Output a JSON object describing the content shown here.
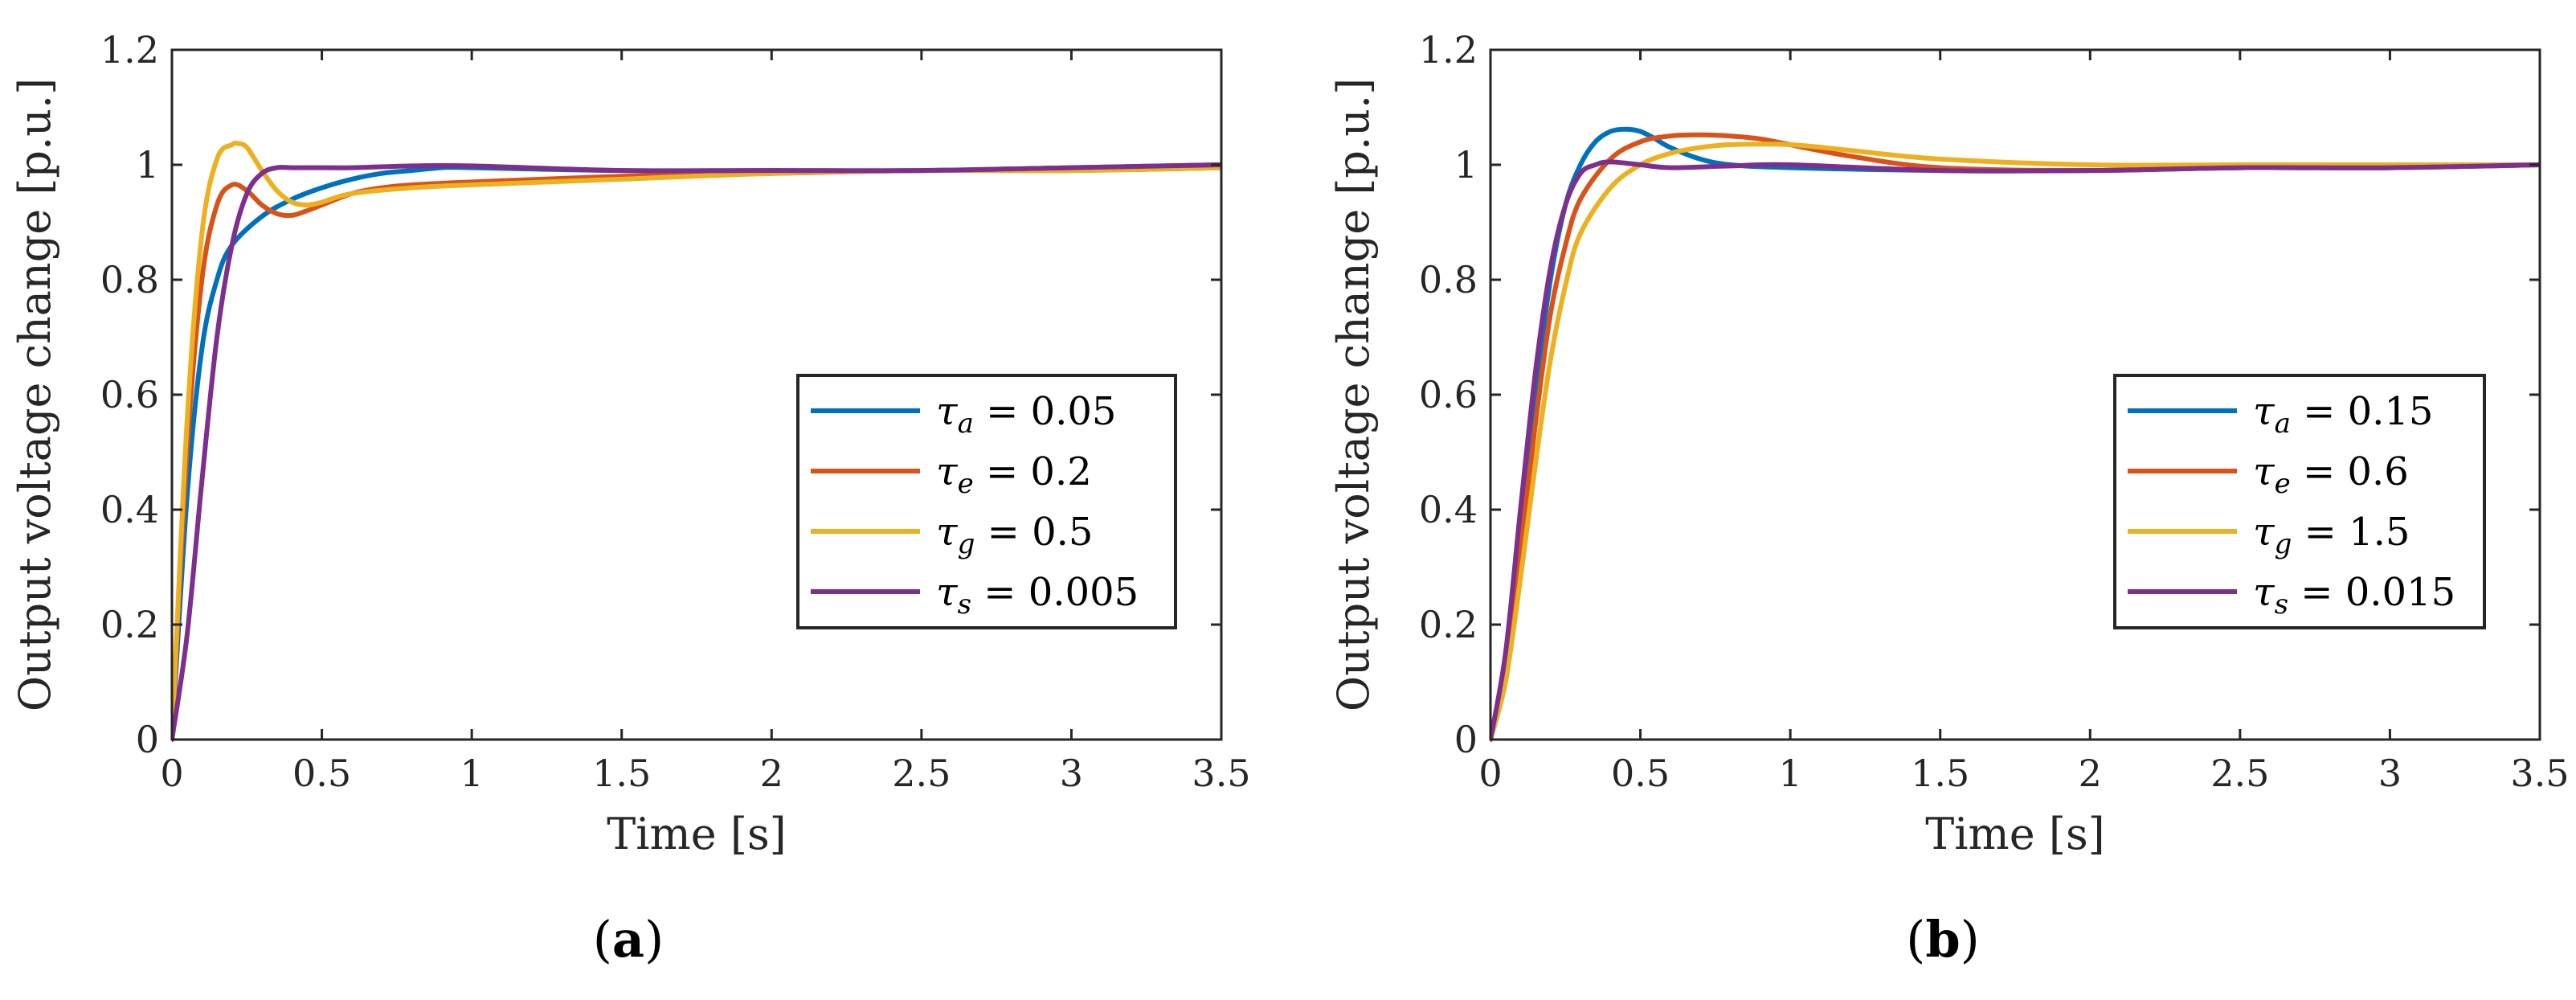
{
  "chart_data": [
    {
      "type": "line",
      "panel_label": "(a)",
      "xlabel": "Time [s]",
      "ylabel": "Output voltage change [p.u.]",
      "xlim": [
        0,
        3.5
      ],
      "ylim": [
        0,
        1.2
      ],
      "xticks": [
        0,
        0.5,
        1,
        1.5,
        2,
        2.5,
        3,
        3.5
      ],
      "yticks": [
        0,
        0.2,
        0.4,
        0.6,
        0.8,
        1,
        1.2
      ],
      "xtick_labels": [
        "0",
        "0.5",
        "1",
        "1.5",
        "2",
        "2.5",
        "3",
        "3.5"
      ],
      "ytick_labels": [
        "0",
        "0.2",
        "0.4",
        "0.6",
        "0.8",
        "1",
        "1.2"
      ],
      "grid": false,
      "legend_position": "center-right",
      "series": [
        {
          "name": "τa = 0.05",
          "symbol": "τ",
          "subscript": "a",
          "value": "0.05",
          "color": "#0072BD",
          "x": [
            0,
            0.05,
            0.1,
            0.15,
            0.2,
            0.3,
            0.4,
            0.5,
            0.6,
            0.7,
            0.8,
            0.9,
            1.0,
            1.5,
            2.0,
            2.5,
            3.0,
            3.5
          ],
          "y": [
            0,
            0.42,
            0.68,
            0.8,
            0.86,
            0.91,
            0.94,
            0.96,
            0.975,
            0.985,
            0.99,
            0.995,
            0.995,
            0.99,
            0.99,
            0.99,
            0.995,
            1.0
          ]
        },
        {
          "name": "τe = 0.2",
          "symbol": "τ",
          "subscript": "e",
          "value": "0.2",
          "color": "#D95319",
          "x": [
            0,
            0.05,
            0.1,
            0.15,
            0.2,
            0.25,
            0.3,
            0.35,
            0.4,
            0.45,
            0.5,
            0.6,
            0.7,
            0.8,
            1.0,
            1.5,
            2.0,
            2.5,
            3.0,
            3.5
          ],
          "y": [
            0,
            0.5,
            0.8,
            0.93,
            0.965,
            0.955,
            0.93,
            0.915,
            0.912,
            0.92,
            0.93,
            0.95,
            0.96,
            0.965,
            0.97,
            0.98,
            0.985,
            0.99,
            0.99,
            0.995
          ]
        },
        {
          "name": "τg = 0.5",
          "symbol": "τ",
          "subscript": "g",
          "value": "0.5",
          "color": "#EDB120",
          "x": [
            0,
            0.05,
            0.1,
            0.15,
            0.2,
            0.22,
            0.25,
            0.3,
            0.35,
            0.4,
            0.45,
            0.5,
            0.6,
            0.8,
            1.0,
            1.5,
            2.0,
            2.5,
            3.0,
            3.5
          ],
          "y": [
            0,
            0.55,
            0.88,
            1.01,
            1.035,
            1.037,
            1.03,
            0.99,
            0.955,
            0.935,
            0.93,
            0.935,
            0.95,
            0.96,
            0.965,
            0.975,
            0.985,
            0.99,
            0.99,
            0.995
          ]
        },
        {
          "name": "τs = 0.005",
          "symbol": "τ",
          "subscript": "s",
          "value": "0.005",
          "color": "#7E2F8E",
          "x": [
            0,
            0.05,
            0.1,
            0.15,
            0.2,
            0.25,
            0.3,
            0.35,
            0.4,
            0.5,
            0.6,
            0.8,
            1.0,
            1.5,
            2.0,
            2.5,
            3.0,
            3.5
          ],
          "y": [
            0,
            0.18,
            0.45,
            0.7,
            0.86,
            0.95,
            0.985,
            0.995,
            0.995,
            0.995,
            0.995,
            0.998,
            0.998,
            0.99,
            0.99,
            0.99,
            0.995,
            1.0
          ]
        }
      ]
    },
    {
      "type": "line",
      "panel_label": "(b)",
      "xlabel": "Time [s]",
      "ylabel": "Output voltage change [p.u.]",
      "xlim": [
        0,
        3.5
      ],
      "ylim": [
        0,
        1.2
      ],
      "xticks": [
        0,
        0.5,
        1,
        1.5,
        2,
        2.5,
        3,
        3.5
      ],
      "yticks": [
        0,
        0.2,
        0.4,
        0.6,
        0.8,
        1,
        1.2
      ],
      "xtick_labels": [
        "0",
        "0.5",
        "1",
        "1.5",
        "2",
        "2.5",
        "3",
        "3.5"
      ],
      "ytick_labels": [
        "0",
        "0.2",
        "0.4",
        "0.6",
        "0.8",
        "1",
        "1.2"
      ],
      "grid": false,
      "legend_position": "center-right",
      "series": [
        {
          "name": "τa = 0.15",
          "symbol": "τ",
          "subscript": "a",
          "value": "0.15",
          "color": "#0072BD",
          "x": [
            0,
            0.05,
            0.1,
            0.15,
            0.2,
            0.25,
            0.3,
            0.35,
            0.4,
            0.45,
            0.5,
            0.55,
            0.6,
            0.7,
            0.8,
            1.0,
            1.5,
            2.0,
            2.5,
            3.0,
            3.5
          ],
          "y": [
            0,
            0.12,
            0.35,
            0.6,
            0.8,
            0.93,
            1.0,
            1.04,
            1.058,
            1.062,
            1.058,
            1.045,
            1.03,
            1.01,
            1.0,
            0.995,
            0.99,
            0.99,
            0.995,
            0.995,
            1.0
          ]
        },
        {
          "name": "τe = 0.6",
          "symbol": "τ",
          "subscript": "e",
          "value": "0.6",
          "color": "#D95319",
          "x": [
            0,
            0.05,
            0.1,
            0.15,
            0.2,
            0.25,
            0.3,
            0.4,
            0.5,
            0.6,
            0.7,
            0.8,
            0.9,
            1.0,
            1.2,
            1.5,
            2.0,
            2.5,
            3.0,
            3.5
          ],
          "y": [
            0,
            0.12,
            0.33,
            0.55,
            0.74,
            0.86,
            0.94,
            1.01,
            1.04,
            1.05,
            1.052,
            1.05,
            1.045,
            1.035,
            1.015,
            0.995,
            0.99,
            0.995,
            0.995,
            1.0
          ]
        },
        {
          "name": "τg = 1.5",
          "symbol": "τ",
          "subscript": "g",
          "value": "1.5",
          "color": "#EDB120",
          "x": [
            0,
            0.05,
            0.1,
            0.15,
            0.2,
            0.25,
            0.3,
            0.4,
            0.5,
            0.6,
            0.7,
            0.8,
            1.0,
            1.2,
            1.5,
            2.0,
            2.5,
            3.0,
            3.5
          ],
          "y": [
            0,
            0.1,
            0.28,
            0.48,
            0.66,
            0.79,
            0.88,
            0.96,
            1.0,
            1.02,
            1.03,
            1.035,
            1.035,
            1.025,
            1.01,
            1.0,
            1.0,
            1.0,
            1.0
          ]
        },
        {
          "name": "τs = 0.015",
          "symbol": "τ",
          "subscript": "s",
          "value": "0.015",
          "color": "#7E2F8E",
          "x": [
            0,
            0.05,
            0.1,
            0.15,
            0.2,
            0.25,
            0.3,
            0.35,
            0.4,
            0.5,
            0.6,
            0.8,
            1.0,
            1.5,
            2.0,
            2.5,
            3.0,
            3.5
          ],
          "y": [
            0,
            0.15,
            0.4,
            0.64,
            0.82,
            0.93,
            0.985,
            1.0,
            1.005,
            1.0,
            0.995,
            0.998,
            1.0,
            0.99,
            0.99,
            0.995,
            0.995,
            1.0
          ]
        }
      ]
    }
  ]
}
